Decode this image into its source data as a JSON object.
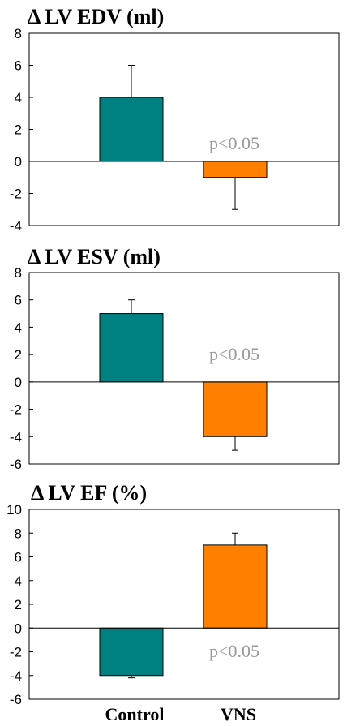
{
  "chart_data": [
    {
      "type": "bar",
      "title": "Δ LV EDV (ml)",
      "categories": [
        "Control",
        "VNS"
      ],
      "values": [
        4,
        -1
      ],
      "errors": [
        2,
        2
      ],
      "colors": [
        "#008080",
        "#FF8000"
      ],
      "ylim": [
        -4,
        8
      ],
      "yticks": [
        -4,
        -2,
        0,
        2,
        4,
        6,
        8
      ],
      "annotation": "p<0.05",
      "show_category_labels": false
    },
    {
      "type": "bar",
      "title": "Δ LV ESV (ml)",
      "categories": [
        "Control",
        "VNS"
      ],
      "values": [
        5,
        -4
      ],
      "errors": [
        1,
        1
      ],
      "colors": [
        "#008080",
        "#FF8000"
      ],
      "ylim": [
        -6,
        8
      ],
      "yticks": [
        -6,
        -4,
        -2,
        0,
        2,
        4,
        6,
        8
      ],
      "annotation": "p<0.05",
      "show_category_labels": false
    },
    {
      "type": "bar",
      "title": "Δ LV EF (%)",
      "categories": [
        "Control",
        "VNS"
      ],
      "values": [
        -4,
        7
      ],
      "errors": [
        0.2,
        1
      ],
      "colors": [
        "#008080",
        "#FF8000"
      ],
      "ylim": [
        -6,
        10
      ],
      "yticks": [
        -6,
        -4,
        -2,
        0,
        2,
        4,
        6,
        8,
        10
      ],
      "annotation": "p<0.05",
      "show_category_labels": true
    }
  ]
}
